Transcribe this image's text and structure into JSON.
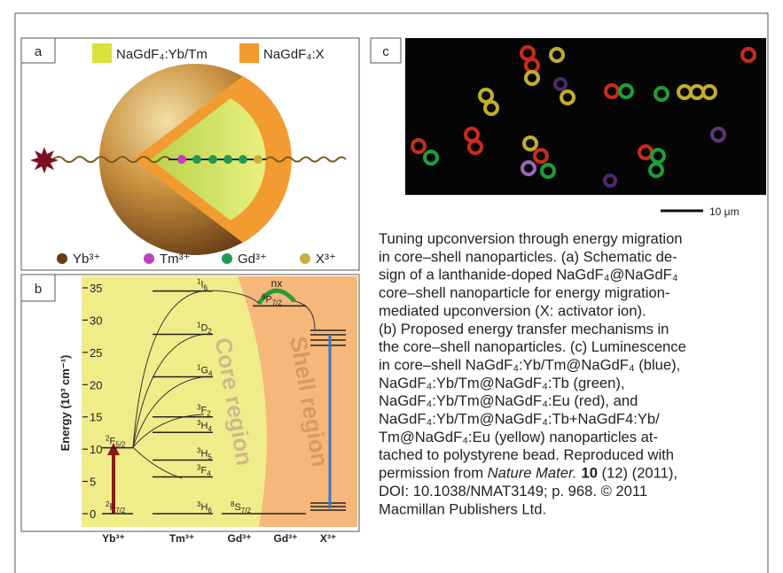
{
  "panel_a": {
    "label": "a",
    "legend": [
      "NaGdF₄:Yb/Tm",
      "NaGdF₄:X"
    ],
    "ions": [
      "Yb³⁺",
      "Tm³⁺",
      "Gd³⁺",
      "X³⁺"
    ]
  },
  "panel_b": {
    "label": "b",
    "y_axis_label": "Energy (10³ cm⁻¹)",
    "ylim": [
      0,
      35
    ],
    "yticks": [
      0,
      5,
      10,
      15,
      20,
      25,
      30,
      35
    ],
    "core_label": "Core region",
    "shell_label": "Shell region",
    "migration_label": "nx",
    "columns": [
      {
        "ion": "Yb³⁺",
        "levels": [
          {
            "sup": "2",
            "base": "F",
            "sub": "5/2",
            "energy": 10.2
          },
          {
            "sup": "2",
            "base": "F",
            "sub": "7/2",
            "energy": 0
          }
        ]
      },
      {
        "ion": "Tm³⁺",
        "levels": [
          {
            "sup": "1",
            "base": "I",
            "sub": "6",
            "energy": 34.5
          },
          {
            "sup": "1",
            "base": "D",
            "sub": "2",
            "energy": 27.8
          },
          {
            "sup": "1",
            "base": "G",
            "sub": "4",
            "energy": 21.2
          },
          {
            "sup": "3",
            "base": "F",
            "sub": "2",
            "energy": 15
          },
          {
            "sup": "3",
            "base": "H",
            "sub": "4",
            "energy": 12.6
          },
          {
            "sup": "3",
            "base": "H",
            "sub": "5",
            "energy": 8.3
          },
          {
            "sup": "3",
            "base": "F",
            "sub": "4",
            "energy": 5.7
          },
          {
            "sup": "3",
            "base": "H",
            "sub": "6",
            "energy": 0
          }
        ]
      },
      {
        "ion": "Gd³⁺",
        "levels": [
          {
            "sup": "6",
            "base": "P",
            "sub": "7/2",
            "energy": 32.2
          },
          {
            "sup": "8",
            "base": "S",
            "sub": "7/2",
            "energy": 0
          }
        ]
      },
      {
        "ion": "Gd³⁺",
        "levels": []
      },
      {
        "ion": "X³⁺",
        "levels": []
      }
    ]
  },
  "panel_c": {
    "label": "c",
    "scale_bar": "10 μm"
  },
  "caption": {
    "lines_before": [
      "Tuning upconversion through energy migration",
      "in core–shell nanoparticles. (a) Schematic de-",
      "sign of a lanthanide-doped NaGdF₄@NaGdF₄",
      "core–shell nanoparticle for energy migration-",
      "mediated upconversion (X: activator ion).",
      "(b) Proposed energy transfer mechanisms in",
      "the core–shell nanoparticles. (c) Luminescence",
      "in core–shell NaGdF₄:Yb/Tm@NaGdF₄ (blue),",
      "NaGdF₄:Yb/Tm@NaGdF₄:Tb (green),",
      "NaGdF₄:Yb/Tm@NaGdF₄:Eu (red), and",
      "NaGdF₄:Yb/Tm@NaGdF₄:Tb+NaGdF4:Yb/",
      "Tm@NaGdF₄:Eu (yellow) nanoparticles at-",
      "tached to polystyrene bead. Reproduced with"
    ],
    "citation": {
      "pre": "permission from ",
      "journal": "Nature Mater.",
      "volume": "10",
      "post": " (12) (2011),"
    },
    "lines_after": [
      "DOI: 10.1038/NMAT3149; p. 968. © 2011",
      "Macmillan Publishers Ltd."
    ]
  }
}
